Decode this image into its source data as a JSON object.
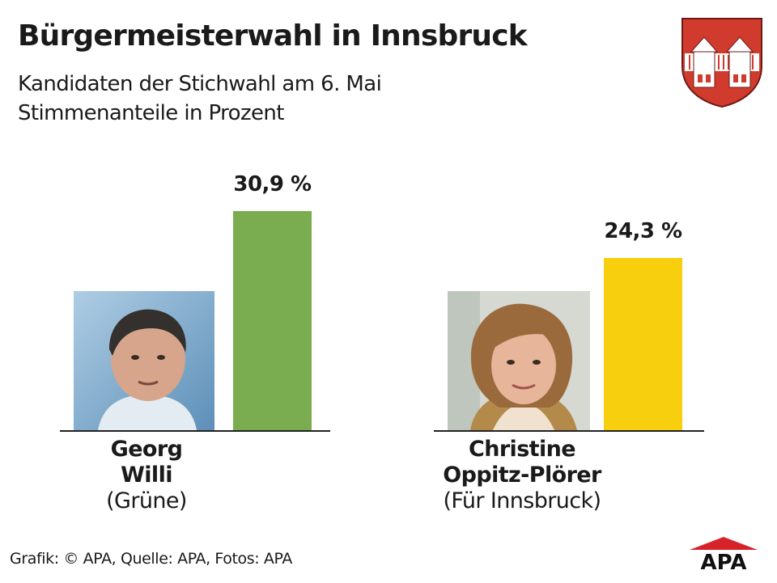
{
  "header": {
    "title": "Bürgermeisterwahl in Innsbruck",
    "subtitle_line1": "Kandidaten der Stichwahl am 6. Mai",
    "subtitle_line2": "Stimmenanteile in Prozent"
  },
  "chart_data": {
    "type": "bar",
    "title": "Bürgermeisterwahl in Innsbruck",
    "subtitle": "Kandidaten der Stichwahl am 6. Mai — Stimmenanteile in Prozent",
    "categories": [
      "Georg Willi (Grüne)",
      "Christine Oppitz-Plörer (Für Innsbruck)"
    ],
    "values": [
      30.9,
      24.3
    ],
    "value_labels": [
      "30,9 %",
      "24,3 %"
    ],
    "colors": [
      "#7aad4f",
      "#f7cf0f"
    ],
    "ylabel": "",
    "ylim": [
      0,
      31
    ],
    "grid": false
  },
  "candidates": [
    {
      "name_line1": "Georg",
      "name_line2": "Willi",
      "party": "(Grüne)"
    },
    {
      "name_line1": "Christine",
      "name_line2": "Oppitz-Plörer",
      "party": "(Für Innsbruck)"
    }
  ],
  "footer": {
    "credit": "Grafik: © APA, Quelle: APA, Fotos: APA"
  },
  "logo": {
    "text": "APA",
    "color": "#d7222a"
  },
  "coat_of_arms": {
    "field_color": "#d13b2e",
    "charge_color": "#ffffff"
  },
  "icons": [
    "innsbruck-coat-of-arms-icon",
    "apa-logo-icon",
    "candidate-photo"
  ]
}
